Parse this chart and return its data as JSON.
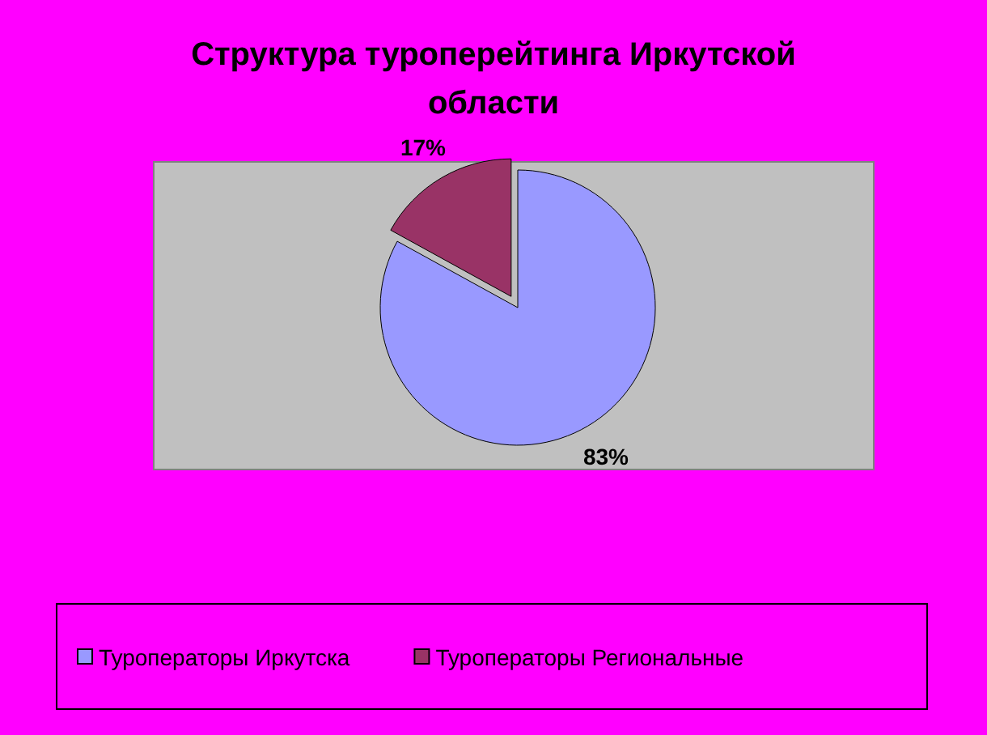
{
  "chart_data": {
    "type": "pie",
    "title": "Структура туроперейтинга Иркутской области",
    "categories": [
      "Туроператоры Иркутска",
      "Туроператоры Региональные"
    ],
    "values": [
      83,
      17
    ],
    "colors": [
      "#9999ff",
      "#993366"
    ],
    "value_labels": [
      "83%",
      "17%"
    ],
    "legend": "bottom"
  }
}
